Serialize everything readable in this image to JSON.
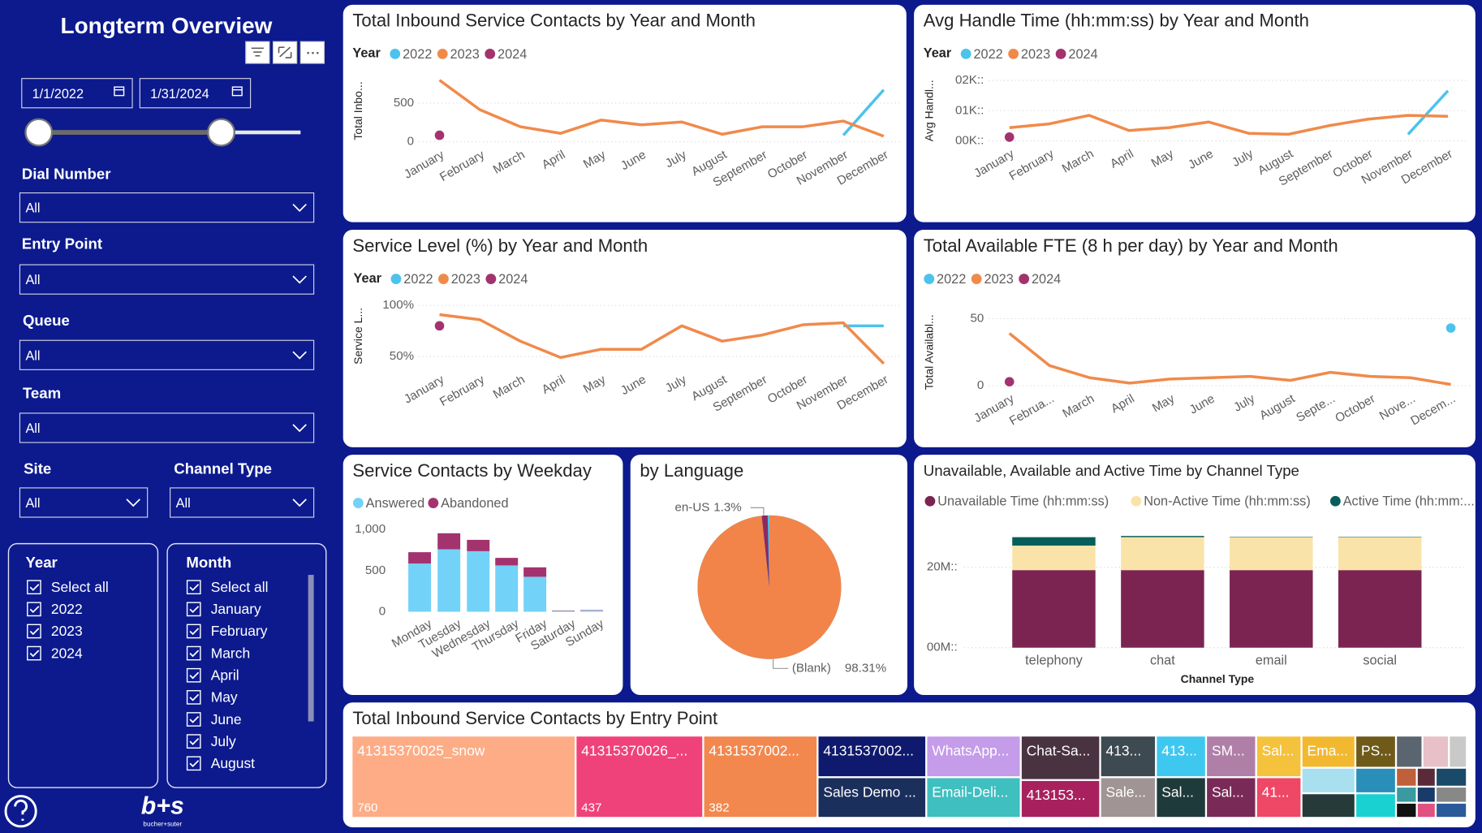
{
  "sidebar": {
    "title": "Longterm Overview",
    "date_from": "1/1/2022",
    "date_to": "1/31/2024",
    "filters": [
      {
        "label": "Dial Number",
        "value": "All"
      },
      {
        "label": "Entry Point",
        "value": "All"
      },
      {
        "label": "Queue",
        "value": "All"
      },
      {
        "label": "Team",
        "value": "All"
      },
      {
        "label": "Site",
        "value": "All"
      },
      {
        "label": "Channel Type",
        "value": "All"
      }
    ],
    "year_slicer": {
      "title": "Year",
      "items": [
        "Select all",
        "2022",
        "2023",
        "2024"
      ]
    },
    "month_slicer": {
      "title": "Month",
      "items": [
        "Select all",
        "January",
        "February",
        "March",
        "April",
        "May",
        "June",
        "July",
        "August"
      ]
    },
    "logo": {
      "mark": "b+s",
      "caption": "bucher+suter"
    }
  },
  "charts": [
    {
      "type": "line",
      "title": "Total Inbound Service Contacts by Year and Month",
      "legend_title": "Year",
      "y_label": "Total Inbo...",
      "categories": [
        "January",
        "February",
        "March",
        "April",
        "May",
        "June",
        "July",
        "August",
        "September",
        "October",
        "November",
        "December"
      ],
      "series": [
        {
          "name": "2022",
          "color": "#4cc3ec",
          "values": [
            null,
            null,
            null,
            null,
            null,
            null,
            null,
            null,
            null,
            null,
            85,
            671
          ]
        },
        {
          "name": "2023",
          "color": "#f08a4b",
          "values": [
            795,
            415,
            195,
            110,
            280,
            220,
            256,
            98,
            195,
            195,
            268,
            73
          ]
        },
        {
          "name": "2024",
          "color": "#a3336e",
          "values": [
            85,
            null,
            null,
            null,
            null,
            null,
            null,
            null,
            null,
            null,
            null,
            null
          ]
        }
      ],
      "ylim": [
        0,
        800
      ],
      "yticks": [
        0,
        500
      ],
      "grid": true
    },
    {
      "type": "line",
      "title": "Avg Handle Time (hh:mm:ss) by Year and Month",
      "legend_title": "Year",
      "y_label": "Avg Handl...",
      "categories": [
        "January",
        "February",
        "March",
        "April",
        "May",
        "June",
        "July",
        "August",
        "September",
        "October",
        "November",
        "December"
      ],
      "series": [
        {
          "name": "2022",
          "color": "#4cc3ec",
          "values": [
            null,
            null,
            null,
            null,
            null,
            null,
            null,
            null,
            null,
            null,
            219,
            1656
          ]
        },
        {
          "name": "2023",
          "color": "#f08a4b",
          "values": [
            437,
            562,
            844,
            344,
            437,
            625,
            250,
            219,
            500,
            719,
            844,
            812
          ]
        },
        {
          "name": "2024",
          "color": "#a3336e",
          "values": [
            125,
            null,
            null,
            null,
            null,
            null,
            null,
            null,
            null,
            null,
            null,
            null
          ]
        }
      ],
      "ylim": [
        0,
        2000
      ],
      "yticks": [
        {
          "value": 0,
          "label": "00K::"
        },
        {
          "value": 1000,
          "label": "01K::"
        },
        {
          "value": 2000,
          "label": "02K::"
        }
      ],
      "grid": true
    },
    {
      "type": "line",
      "title": "Service Level (%) by Year and Month",
      "legend_title": "Year",
      "y_label": "Service L...",
      "categories": [
        "January",
        "February",
        "March",
        "April",
        "May",
        "June",
        "July",
        "August",
        "September",
        "October",
        "November",
        "December"
      ],
      "series": [
        {
          "name": "2022",
          "color": "#4cc3ec",
          "values": [
            null,
            null,
            null,
            null,
            null,
            null,
            null,
            null,
            null,
            null,
            80,
            80
          ]
        },
        {
          "name": "2023",
          "color": "#f08a4b",
          "values": [
            91,
            86,
            65,
            49,
            57,
            57,
            80,
            65,
            71,
            81,
            83,
            43
          ]
        },
        {
          "name": "2024",
          "color": "#a3336e",
          "values": [
            80,
            null,
            null,
            null,
            null,
            null,
            null,
            null,
            null,
            null,
            null,
            null
          ]
        }
      ],
      "ylim": [
        40,
        100
      ],
      "yticks": [
        {
          "value": 50,
          "label": "50%"
        },
        {
          "value": 100,
          "label": "100%"
        }
      ],
      "grid": true
    },
    {
      "type": "line",
      "title": "Total Available FTE (8 h per day) by Year and Month",
      "y_label": "Total Availabl...",
      "categories": [
        "January",
        "Februa...",
        "March",
        "April",
        "May",
        "June",
        "July",
        "August",
        "Septe...",
        "October",
        "Nove...",
        "Decem..."
      ],
      "series": [
        {
          "name": "2022",
          "color": "#4cc3ec",
          "values": [
            null,
            null,
            null,
            null,
            null,
            null,
            null,
            null,
            null,
            null,
            null,
            43
          ]
        },
        {
          "name": "2023",
          "color": "#f08a4b",
          "values": [
            39,
            15,
            6,
            2,
            5,
            6,
            7,
            4,
            10,
            7,
            6,
            1
          ]
        },
        {
          "name": "2024",
          "color": "#a3336e",
          "values": [
            3,
            null,
            null,
            null,
            null,
            null,
            null,
            null,
            null,
            null,
            null,
            null
          ]
        }
      ],
      "ylim": [
        0,
        50
      ],
      "yticks": [
        0,
        50
      ],
      "grid": true
    },
    {
      "type": "stacked_bar",
      "title": "Service Contacts by Weekday",
      "categories": [
        "Monday",
        "Tuesday",
        "Wednesday",
        "Thursday",
        "Friday",
        "Saturday",
        "Sunday"
      ],
      "series": [
        {
          "name": "Answered",
          "color": "#73d2f7",
          "values": [
            586,
            759,
            736,
            563,
            425,
            10,
            15
          ]
        },
        {
          "name": "Abandoned",
          "color": "#a3336e",
          "values": [
            138,
            195,
            138,
            92,
            115,
            5,
            5
          ]
        }
      ],
      "ylim": [
        0,
        1000
      ],
      "yticks": [
        0,
        500,
        {
          "value": 1000,
          "label": "1,000"
        }
      ],
      "grid": false
    },
    {
      "type": "pie",
      "title": "by Language",
      "labels": [
        "(Blank)",
        "en-US"
      ],
      "values": [
        98.31,
        1.3
      ],
      "value_labels": [
        "98.31%",
        "1.3%"
      ],
      "colors": [
        "#f2844a",
        "#8a2a63"
      ]
    },
    {
      "type": "stacked_bar",
      "title": "Unavailable, Available and Active Time by Channel Type",
      "x_label": "Channel Type",
      "categories": [
        "telephony",
        "chat",
        "email",
        "social"
      ],
      "series": [
        {
          "name": "Unavailable Time (hh:mm:ss)",
          "color": "#7b2452",
          "values": [
            19300000,
            19300000,
            19300000,
            19300000
          ]
        },
        {
          "name": "Non-Active Time (hh:mm:ss)",
          "color": "#f9e3a8",
          "values": [
            6100000,
            8200000,
            8200000,
            8200000
          ]
        },
        {
          "name": "Active Time (hh:mm:...",
          "color": "#065e5a",
          "values": [
            2100000,
            300000,
            100000,
            100000
          ]
        }
      ],
      "ylim": [
        0,
        30000000
      ],
      "yticks": [
        {
          "value": 0,
          "label": "00M::"
        },
        {
          "value": 20000000,
          "label": "20M::"
        }
      ],
      "grid": true
    },
    {
      "type": "treemap",
      "title": "Total Inbound Service Contacts by Entry Point",
      "tiles": [
        {
          "label": "41315370025_snow",
          "value": 760,
          "color": "#fdac86"
        },
        {
          "label": "41315370026_...",
          "value": 437,
          "color": "#f0427a"
        },
        {
          "label": "4131537002...",
          "value": 382,
          "color": "#f2884e"
        },
        {
          "label": "4131537002...",
          "color": "#0f1a6e"
        },
        {
          "label": "Sales Demo ...",
          "color": "#1b2f5c"
        },
        {
          "label": "WhatsApp...",
          "color": "#c49cea"
        },
        {
          "label": "Email-Deli...",
          "color": "#3fbfc0"
        },
        {
          "label": "Chat-Sa...",
          "color": "#4a3340"
        },
        {
          "label": "413153...",
          "color": "#a8215e"
        },
        {
          "label": "413...",
          "color": "#3e4a52"
        },
        {
          "label": "Sale...",
          "color": "#a09594"
        },
        {
          "label": "413...",
          "color": "#3ec8f0"
        },
        {
          "label": "Sal...",
          "color": "#1f3a3a"
        },
        {
          "label": "SM...",
          "color": "#b07fa8"
        },
        {
          "label": "Sal...",
          "color": "#7a2a56"
        },
        {
          "label": "Sal...",
          "color": "#f4c23c"
        },
        {
          "label": "41...",
          "color": "#ef4766"
        },
        {
          "label": "Ema...",
          "color": "#f2b82f"
        },
        {
          "label": "PS...",
          "color": "#6f5a1a"
        }
      ]
    }
  ]
}
